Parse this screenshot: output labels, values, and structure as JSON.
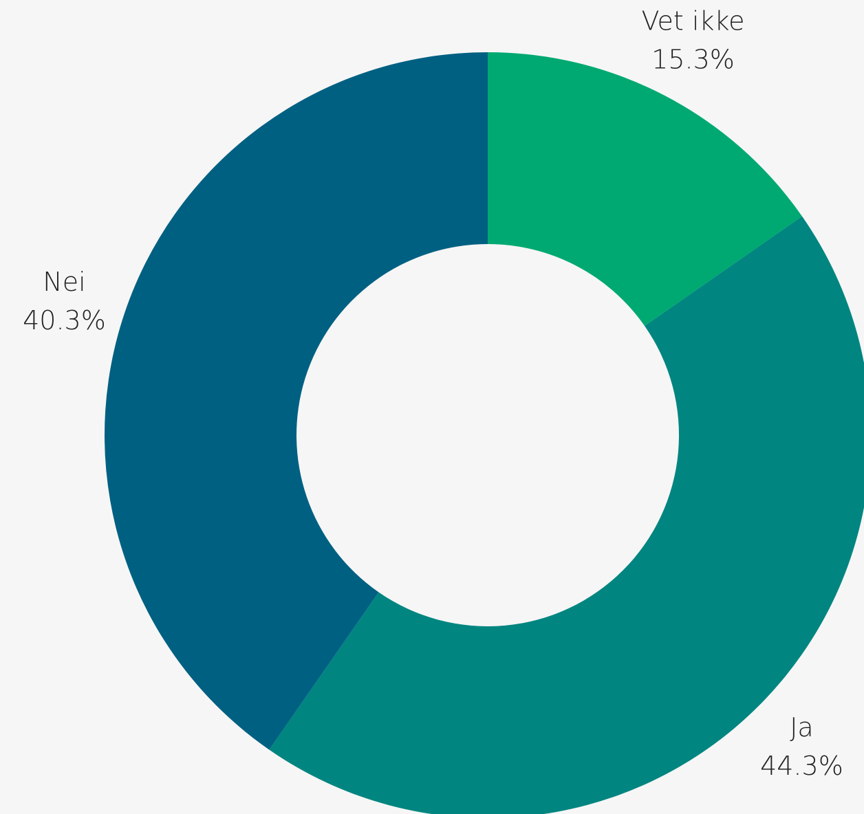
{
  "chart_data": {
    "type": "donut",
    "categories": [
      "Vet ikke",
      "Ja",
      "Nei"
    ],
    "values": [
      15.3,
      44.3,
      40.3
    ],
    "value_labels": [
      "15.3%",
      "44.3%",
      "40.3%"
    ],
    "colors": [
      "#00a971",
      "#008580",
      "#006082"
    ]
  }
}
